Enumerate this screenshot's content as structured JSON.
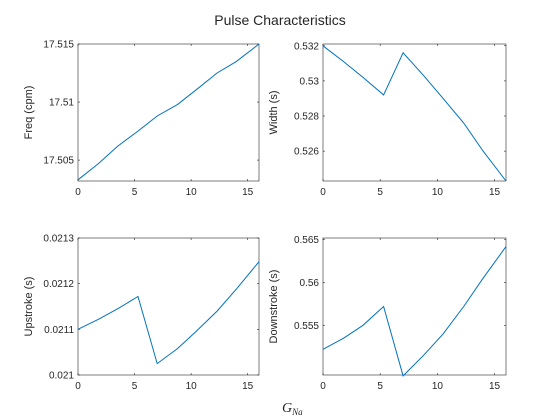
{
  "figure": {
    "title": "Pulse Characteristics",
    "xlabel_main": "G",
    "xlabel_sub": "Na",
    "line_color": "#0072bd"
  },
  "chart_data": [
    {
      "type": "line",
      "ylabel": "Freq (cpm)",
      "xlim": [
        0,
        16
      ],
      "ylim": [
        17.5032,
        17.515
      ],
      "xticks": [
        0,
        5,
        10,
        15
      ],
      "yticks": [
        17.505,
        17.51,
        17.515
      ],
      "ytick_labels": [
        "17.505",
        "17.51",
        "17.515"
      ],
      "x": [
        0,
        1.8,
        3.5,
        5.3,
        7.0,
        8.8,
        10.5,
        12.3,
        14.0,
        16.0
      ],
      "y": [
        17.5033,
        17.5047,
        17.5062,
        17.5075,
        17.5088,
        17.5098,
        17.5111,
        17.5125,
        17.5135,
        17.515
      ]
    },
    {
      "type": "line",
      "ylabel": "Width (s)",
      "xlim": [
        0,
        16
      ],
      "ylim": [
        0.5243,
        0.5321
      ],
      "xticks": [
        0,
        5,
        10,
        15
      ],
      "yticks": [
        0.526,
        0.528,
        0.53,
        0.532
      ],
      "ytick_labels": [
        "0.526",
        "0.528",
        "0.53",
        "0.532"
      ],
      "x": [
        0,
        1.8,
        3.5,
        5.3,
        7.0,
        8.8,
        10.5,
        12.3,
        14.0,
        16.0
      ],
      "y": [
        0.532,
        0.5311,
        0.5302,
        0.5292,
        0.5316,
        0.5303,
        0.529,
        0.5276,
        0.526,
        0.5243
      ]
    },
    {
      "type": "line",
      "ylabel": "Upstroke (s)",
      "xlim": [
        0,
        16
      ],
      "ylim": [
        0.021,
        0.0213
      ],
      "xticks": [
        0,
        5,
        10,
        15
      ],
      "yticks": [
        0.021,
        0.0211,
        0.0212,
        0.0213
      ],
      "ytick_labels": [
        "0.021",
        "0.0211",
        "0.0212",
        "0.0213"
      ],
      "x": [
        0,
        1.8,
        3.5,
        5.3,
        7.0,
        8.8,
        10.5,
        12.3,
        14.0,
        16.0
      ],
      "y": [
        0.0211,
        0.021122,
        0.021145,
        0.021172,
        0.021025,
        0.021058,
        0.021097,
        0.02114,
        0.021188,
        0.021248
      ]
    },
    {
      "type": "line",
      "ylabel": "Downstroke (s)",
      "xlim": [
        0,
        16
      ],
      "ylim": [
        0.5492,
        0.5652
      ],
      "xticks": [
        0,
        5,
        10,
        15
      ],
      "yticks": [
        0.555,
        0.56,
        0.565
      ],
      "ytick_labels": [
        "0.555",
        "0.56",
        "0.565"
      ],
      "x": [
        0,
        1.8,
        3.5,
        5.3,
        7.0,
        8.8,
        10.5,
        12.3,
        14.0,
        16.0
      ],
      "y": [
        0.5522,
        0.5535,
        0.555,
        0.5572,
        0.5491,
        0.5515,
        0.554,
        0.5572,
        0.5605,
        0.5642
      ]
    }
  ]
}
